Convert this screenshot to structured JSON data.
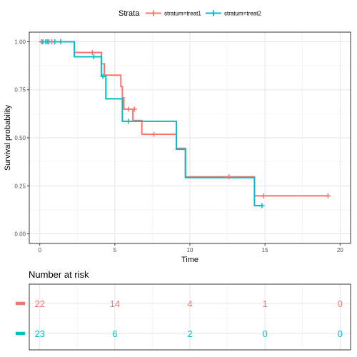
{
  "chart_data": {
    "type": "line",
    "subtype": "kaplan-meier",
    "legend": {
      "title": "Strata",
      "position": "top"
    },
    "xlabel": "Time",
    "ylabel": "Survival probability",
    "xlim": [
      -0.7,
      20.7
    ],
    "ylim": [
      -0.05,
      1.05
    ],
    "x_ticks": [
      0,
      5,
      10,
      15,
      20
    ],
    "x_tick_labels": [
      "0",
      "5",
      "10",
      "15",
      "20"
    ],
    "y_ticks": [
      0,
      0.25,
      0.5,
      0.75,
      1
    ],
    "y_tick_labels": [
      "0.00",
      "0.25",
      "0.50",
      "0.75",
      "1.00"
    ],
    "grid": true,
    "series": [
      {
        "name": "stratum=treat1",
        "color": "#F8766D",
        "steps": [
          [
            0,
            1.0
          ],
          [
            2.3,
            0.944
          ],
          [
            4.1,
            0.885
          ],
          [
            4.3,
            0.826
          ],
          [
            5.4,
            0.767
          ],
          [
            5.5,
            0.708
          ],
          [
            5.6,
            0.649
          ],
          [
            6.2,
            0.59
          ],
          [
            6.8,
            0.518
          ],
          [
            9.1,
            0.445
          ],
          [
            9.7,
            0.297
          ],
          [
            14.3,
            0.198
          ],
          [
            19.2,
            0.198
          ]
        ],
        "censor": [
          [
            0.1,
            1.0
          ],
          [
            0.5,
            1.0
          ],
          [
            0.8,
            1.0
          ],
          [
            1.4,
            1.0
          ],
          [
            3.5,
            0.944
          ],
          [
            5.9,
            0.649
          ],
          [
            6.3,
            0.649
          ],
          [
            7.6,
            0.518
          ],
          [
            12.6,
            0.297
          ],
          [
            14.9,
            0.198
          ],
          [
            19.2,
            0.198
          ]
        ]
      },
      {
        "name": "stratum=treat2",
        "color": "#00BFC4",
        "steps": [
          [
            0,
            1.0
          ],
          [
            2.3,
            0.922
          ],
          [
            4.1,
            0.82
          ],
          [
            4.4,
            0.703
          ],
          [
            5.5,
            0.586
          ],
          [
            9.1,
            0.44
          ],
          [
            9.7,
            0.293
          ],
          [
            14.3,
            0.147
          ],
          [
            14.8,
            0.147
          ]
        ],
        "censor": [
          [
            0.2,
            1.0
          ],
          [
            0.4,
            1.0
          ],
          [
            0.6,
            1.0
          ],
          [
            1.0,
            1.0
          ],
          [
            1.4,
            1.0
          ],
          [
            3.6,
            0.922
          ],
          [
            4.2,
            0.82
          ],
          [
            5.9,
            0.586
          ],
          [
            14.8,
            0.147
          ]
        ]
      }
    ],
    "risk_table": {
      "title": "Number at risk",
      "times": [
        0,
        5,
        10,
        15,
        20
      ],
      "rows": [
        {
          "color": "#F8766D",
          "counts": [
            "22",
            "14",
            "4",
            "1",
            "0"
          ]
        },
        {
          "color": "#00BFC4",
          "counts": [
            "23",
            "6",
            "2",
            "0",
            "0"
          ]
        }
      ]
    }
  }
}
